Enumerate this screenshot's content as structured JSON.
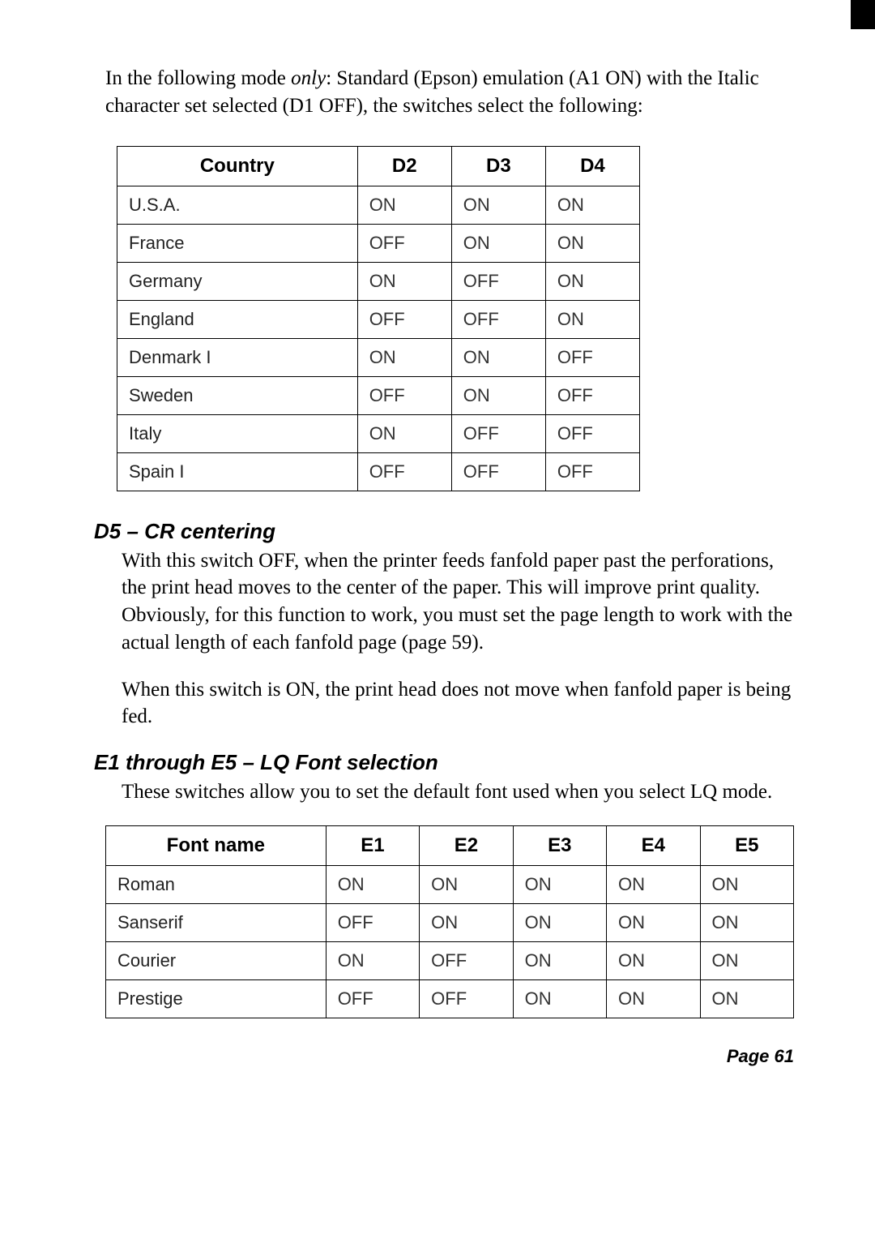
{
  "intro": {
    "pre": "In the following mode ",
    "only": "only",
    "post": ": Standard (Epson) emulation (A1 ON) with the Italic character set selected (D1 OFF), the switches select the following:"
  },
  "table1": {
    "headers": [
      "Country",
      "D2",
      "D3",
      "D4"
    ],
    "rows": [
      [
        "U.S.A.",
        "ON",
        "ON",
        "ON"
      ],
      [
        "France",
        "OFF",
        "ON",
        "ON"
      ],
      [
        "Germany",
        "ON",
        "OFF",
        "ON"
      ],
      [
        "England",
        "OFF",
        "OFF",
        "ON"
      ],
      [
        "Denmark I",
        "ON",
        "ON",
        "OFF"
      ],
      [
        "Sweden",
        "OFF",
        "ON",
        "OFF"
      ],
      [
        "Italy",
        "ON",
        "OFF",
        "OFF"
      ],
      [
        "Spain I",
        "OFF",
        "OFF",
        "OFF"
      ]
    ]
  },
  "d5": {
    "heading": "D5 – CR centering",
    "p1": "With this switch OFF, when the printer feeds fanfold paper past the perforations, the print head moves to the center of the paper. This will improve print quality. Obviously, for this function to work, you must set the page length to work with the actual length of each fanfold page (page 59).",
    "p2": "When this switch is ON, the print head does not move when fanfold paper is being fed."
  },
  "e1e5": {
    "heading": "E1 through E5 – LQ Font selection",
    "p1": "These switches allow you to set the default font used when you select LQ mode."
  },
  "table2": {
    "headers": [
      "Font name",
      "E1",
      "E2",
      "E3",
      "E4",
      "E5"
    ],
    "rows": [
      [
        "Roman",
        "ON",
        "ON",
        "ON",
        "ON",
        "ON"
      ],
      [
        "Sanserif",
        "OFF",
        "ON",
        "ON",
        "ON",
        "ON"
      ],
      [
        "Courier",
        "ON",
        "OFF",
        "ON",
        "ON",
        "ON"
      ],
      [
        "Prestige",
        "OFF",
        "OFF",
        "ON",
        "ON",
        "ON"
      ]
    ]
  },
  "footer": "Page 61"
}
